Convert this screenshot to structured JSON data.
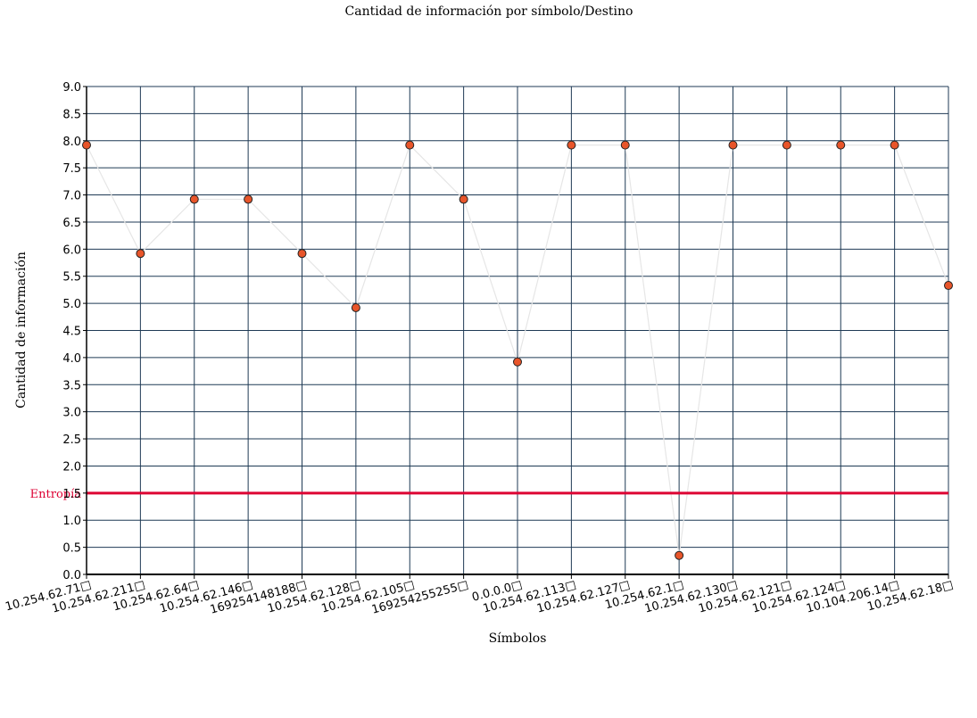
{
  "chart_data": {
    "type": "line",
    "title": "Cantidad de información por símbolo/Destino",
    "xlabel": "Símbolos",
    "ylabel": "Cantidad de información",
    "ylim": [
      0,
      9
    ],
    "ytick_step": 0.5,
    "grid": true,
    "categories": [
      "10.254.62.71□",
      "10.254.62.211□",
      "10.254.62.64□",
      "10.254.62.146□",
      "169254148188□",
      "10.254.62.128□",
      "10.254.62.105□",
      "169254255255□",
      "0.0.0.0□",
      "10.254.62.113□",
      "10.254.62.127□",
      "10.254.62.1□",
      "10.254.62.130□",
      "10.254.62.121□",
      "10.254.62.124□",
      "10.104.206.14□",
      "10.254.62.18□"
    ],
    "series": [
      {
        "values": [
          7.92,
          5.92,
          6.92,
          6.92,
          5.92,
          4.92,
          7.92,
          6.92,
          3.92,
          7.92,
          7.92,
          0.35,
          7.92,
          7.92,
          7.92,
          7.92,
          5.33
        ],
        "line_color": "#e6e6e6",
        "marker_color": "#e8552a"
      }
    ],
    "reference_line": {
      "label": "Entropía",
      "value": 1.5,
      "color": "#dd0033"
    },
    "grid_color": "#1f3a55"
  }
}
